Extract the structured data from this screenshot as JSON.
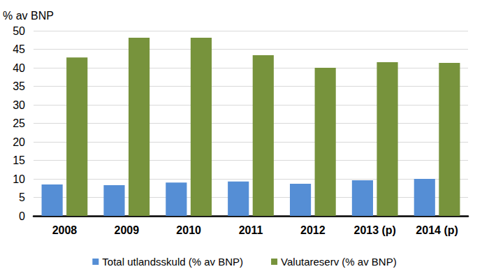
{
  "chart_data": {
    "type": "bar",
    "ylabel": "% av BNP",
    "categories": [
      "2008",
      "2009",
      "2010",
      "2011",
      "2012",
      "2013 (p)",
      "2014 (p)"
    ],
    "series": [
      {
        "name": "Total utlandsskuld (% av BNP)",
        "color": "#558ed5",
        "values": [
          8.5,
          8.3,
          9.0,
          9.3,
          8.7,
          9.6,
          10.0
        ]
      },
      {
        "name": "Valutareserv (% av BNP)",
        "color": "#77933c",
        "values": [
          42.8,
          48.1,
          48.1,
          43.4,
          40.0,
          41.5,
          41.3
        ]
      }
    ],
    "ylim": [
      0,
      50
    ],
    "yticks": [
      0,
      5,
      10,
      15,
      20,
      25,
      30,
      35,
      40,
      45,
      50
    ],
    "grid": true,
    "legend": "bottom"
  }
}
